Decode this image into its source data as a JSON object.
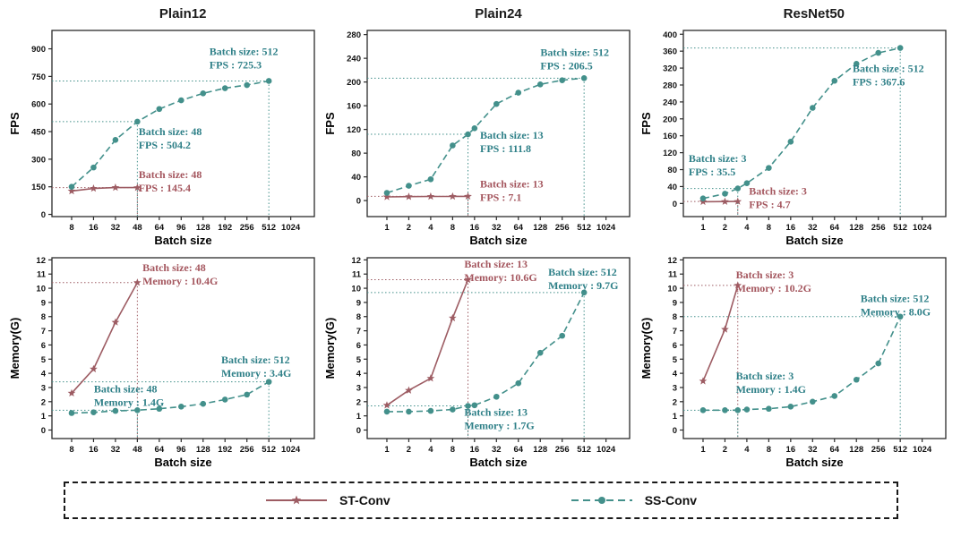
{
  "colors": {
    "st": "#9d5c63",
    "ss": "#43908b",
    "st_text": "#a4565e",
    "ss_text": "#2f8088",
    "axis": "#2b2b2b",
    "tick_text": "#111111"
  },
  "legend": {
    "items": [
      {
        "key": "st",
        "label": "ST-Conv"
      },
      {
        "key": "ss",
        "label": "SS-Conv"
      }
    ]
  },
  "chart_data": [
    {
      "id": "plain12-fps",
      "type": "line",
      "title": "Plain12",
      "xlabel": "Batch size",
      "ylabel": "FPS",
      "ylim": [
        -12,
        1000
      ],
      "yticks": [
        0,
        150,
        300,
        450,
        600,
        750,
        900
      ],
      "categories": [
        8,
        16,
        32,
        48,
        64,
        96,
        128,
        192,
        256,
        512,
        1024
      ],
      "series": [
        {
          "key": "st",
          "name": "ST-Conv",
          "points": [
            [
              8,
              127
            ],
            [
              16,
              141
            ],
            [
              32,
              146
            ],
            [
              48,
              145.4
            ]
          ]
        },
        {
          "key": "ss",
          "name": "SS-Conv",
          "points": [
            [
              8,
              150
            ],
            [
              16,
              255
            ],
            [
              32,
              405
            ],
            [
              48,
              504.2
            ],
            [
              64,
              573
            ],
            [
              96,
              620
            ],
            [
              128,
              658
            ],
            [
              192,
              686
            ],
            [
              256,
              703
            ],
            [
              512,
              725.3
            ]
          ]
        }
      ],
      "annotations": [
        {
          "series": "ss",
          "x": 512,
          "y": 725.3,
          "fx": 0.6,
          "fy": 0.08,
          "lines": [
            "Batch size: 512",
            "FPS : 725.3"
          ]
        },
        {
          "series": "ss",
          "x": 48,
          "y": 504.2,
          "fx": 0.33,
          "fy": 0.51,
          "lines": [
            "Batch size: 48",
            "FPS : 504.2"
          ]
        },
        {
          "series": "st",
          "x": 48,
          "y": 145.4,
          "fx": 0.33,
          "fy": 0.74,
          "lines": [
            "Batch size: 48",
            "FPS : 145.4"
          ]
        }
      ]
    },
    {
      "id": "plain24-fps",
      "type": "line",
      "title": "Plain24",
      "xlabel": "Batch size",
      "ylabel": "FPS",
      "ylim": [
        -27,
        287
      ],
      "yticks": [
        0,
        40,
        80,
        120,
        160,
        200,
        240,
        280
      ],
      "categories": [
        1,
        2,
        4,
        8,
        16,
        32,
        64,
        128,
        256,
        512,
        1024
      ],
      "series": [
        {
          "key": "st",
          "name": "ST-Conv",
          "points": [
            [
              1,
              6.2
            ],
            [
              2,
              6.6
            ],
            [
              4,
              6.9
            ],
            [
              8,
              7.0
            ],
            [
              13,
              7.1
            ]
          ]
        },
        {
          "key": "ss",
          "name": "SS-Conv",
          "points": [
            [
              1,
              13
            ],
            [
              2,
              25
            ],
            [
              4,
              36
            ],
            [
              8,
              93
            ],
            [
              13,
              111.8
            ],
            [
              16,
              122
            ],
            [
              32,
              163
            ],
            [
              64,
              182
            ],
            [
              128,
              196
            ],
            [
              256,
              203
            ],
            [
              512,
              206.5
            ]
          ]
        }
      ],
      "annotations": [
        {
          "series": "ss",
          "x": 512,
          "y": 206.5,
          "fx": 0.66,
          "fy": 0.085,
          "lines": [
            "Batch size: 512",
            "FPS : 206.5"
          ]
        },
        {
          "series": "ss",
          "x": 13,
          "y": 111.8,
          "fx": 0.43,
          "fy": 0.53,
          "lines": [
            "Batch size: 13",
            "FPS : 111.8"
          ]
        },
        {
          "series": "st",
          "x": 13,
          "y": 7.1,
          "fx": 0.43,
          "fy": 0.79,
          "lines": [
            "Batch size: 13",
            "FPS : 7.1"
          ]
        }
      ]
    },
    {
      "id": "resnet50-fps",
      "type": "line",
      "title": "ResNet50",
      "xlabel": "Batch size",
      "ylabel": "FPS",
      "ylim": [
        -31,
        409
      ],
      "yticks": [
        0,
        40,
        80,
        120,
        160,
        200,
        240,
        280,
        320,
        360,
        400
      ],
      "categories": [
        1,
        2,
        4,
        8,
        16,
        32,
        64,
        128,
        256,
        512,
        1024
      ],
      "series": [
        {
          "key": "st",
          "name": "ST-Conv",
          "points": [
            [
              1,
              4.1
            ],
            [
              2,
              4.5
            ],
            [
              3,
              4.7
            ]
          ]
        },
        {
          "key": "ss",
          "name": "SS-Conv",
          "points": [
            [
              1,
              12
            ],
            [
              2,
              23
            ],
            [
              3,
              35.5
            ],
            [
              4,
              48
            ],
            [
              8,
              84
            ],
            [
              16,
              146
            ],
            [
              32,
              226
            ],
            [
              64,
              290
            ],
            [
              128,
              330
            ],
            [
              256,
              356
            ],
            [
              512,
              367.6
            ]
          ]
        }
      ],
      "annotations": [
        {
          "series": "ss",
          "x": 512,
          "y": 367.6,
          "fx": 0.645,
          "fy": 0.17,
          "lines": [
            "Batch size : 512",
            "FPS : 367.6"
          ]
        },
        {
          "series": "ss",
          "x": 3,
          "y": 35.5,
          "fx": 0.02,
          "fy": 0.655,
          "lines": [
            "Batch size: 3",
            "FPS : 35.5"
          ]
        },
        {
          "series": "st",
          "x": 3,
          "y": 4.7,
          "fx": 0.25,
          "fy": 0.83,
          "lines": [
            "Batch size: 3",
            "FPS : 4.7"
          ]
        }
      ]
    },
    {
      "id": "plain12-memory",
      "type": "line",
      "title": "",
      "xlabel": "Batch size",
      "ylabel": "Memory(G)",
      "ylim": [
        -0.6,
        12.15
      ],
      "yticks": [
        0,
        1,
        2,
        3,
        4,
        5,
        6,
        7,
        8,
        9,
        10,
        11,
        12
      ],
      "categories": [
        8,
        16,
        32,
        48,
        64,
        96,
        128,
        192,
        256,
        512,
        1024
      ],
      "series": [
        {
          "key": "st",
          "name": "ST-Conv",
          "points": [
            [
              8,
              2.6
            ],
            [
              16,
              4.3
            ],
            [
              32,
              7.6
            ],
            [
              48,
              10.4
            ]
          ]
        },
        {
          "key": "ss",
          "name": "SS-Conv",
          "points": [
            [
              8,
              1.2
            ],
            [
              16,
              1.25
            ],
            [
              32,
              1.35
            ],
            [
              48,
              1.4
            ],
            [
              64,
              1.5
            ],
            [
              96,
              1.65
            ],
            [
              128,
              1.85
            ],
            [
              192,
              2.15
            ],
            [
              256,
              2.5
            ],
            [
              512,
              3.4
            ]
          ]
        }
      ],
      "annotations": [
        {
          "series": "st",
          "x": 48,
          "y": 10.4,
          "fx": 0.345,
          "fy": 0.02,
          "lines": [
            "Batch size: 48",
            "Memory : 10.4G"
          ]
        },
        {
          "series": "ss",
          "x": 512,
          "y": 3.4,
          "fx": 0.645,
          "fy": 0.53,
          "lines": [
            "Batch size: 512",
            "Memory : 3.4G"
          ]
        },
        {
          "series": "ss",
          "x": 48,
          "y": 1.4,
          "fx": 0.16,
          "fy": 0.69,
          "lines": [
            "Batch size: 48",
            "Memory : 1.4G"
          ]
        }
      ]
    },
    {
      "id": "plain24-memory",
      "type": "line",
      "title": "",
      "xlabel": "Batch size",
      "ylabel": "Memory(G)",
      "ylim": [
        -0.6,
        12.15
      ],
      "yticks": [
        0,
        1,
        2,
        3,
        4,
        5,
        6,
        7,
        8,
        9,
        10,
        11,
        12
      ],
      "categories": [
        1,
        2,
        4,
        8,
        16,
        32,
        64,
        128,
        256,
        512,
        1024
      ],
      "series": [
        {
          "key": "st",
          "name": "ST-Conv",
          "points": [
            [
              1,
              1.75
            ],
            [
              2,
              2.8
            ],
            [
              4,
              3.65
            ],
            [
              8,
              7.9
            ],
            [
              13,
              10.6
            ]
          ]
        },
        {
          "key": "ss",
          "name": "SS-Conv",
          "points": [
            [
              1,
              1.3
            ],
            [
              2,
              1.3
            ],
            [
              4,
              1.35
            ],
            [
              8,
              1.45
            ],
            [
              13,
              1.7
            ],
            [
              16,
              1.75
            ],
            [
              32,
              2.35
            ],
            [
              64,
              3.3
            ],
            [
              128,
              5.45
            ],
            [
              256,
              6.65
            ],
            [
              512,
              9.7
            ]
          ]
        }
      ],
      "annotations": [
        {
          "series": "st",
          "x": 13,
          "y": 10.6,
          "fx": 0.37,
          "fy": 0.0,
          "lines": [
            "Batch size: 13",
            "Memory: 10.6G"
          ]
        },
        {
          "series": "ss",
          "x": 512,
          "y": 9.7,
          "fx": 0.69,
          "fy": 0.045,
          "lines": [
            "Batch size: 512",
            "Memory : 9.7G"
          ]
        },
        {
          "series": "ss",
          "x": 13,
          "y": 1.7,
          "fx": 0.37,
          "fy": 0.82,
          "lines": [
            "Batch size: 13",
            "Memory : 1.7G"
          ]
        }
      ]
    },
    {
      "id": "resnet50-memory",
      "type": "line",
      "title": "",
      "xlabel": "Batch size",
      "ylabel": "Memory(G)",
      "ylim": [
        -0.6,
        12.15
      ],
      "yticks": [
        0,
        1,
        2,
        3,
        4,
        5,
        6,
        7,
        8,
        9,
        10,
        11,
        12
      ],
      "categories": [
        1,
        2,
        4,
        8,
        16,
        32,
        64,
        128,
        256,
        512,
        1024
      ],
      "series": [
        {
          "key": "st",
          "name": "ST-Conv",
          "points": [
            [
              1,
              3.45
            ],
            [
              2,
              7.1
            ],
            [
              3,
              10.2
            ]
          ]
        },
        {
          "key": "ss",
          "name": "SS-Conv",
          "points": [
            [
              1,
              1.4
            ],
            [
              2,
              1.4
            ],
            [
              3,
              1.4
            ],
            [
              4,
              1.45
            ],
            [
              8,
              1.5
            ],
            [
              16,
              1.65
            ],
            [
              32,
              2.0
            ],
            [
              64,
              2.4
            ],
            [
              128,
              3.55
            ],
            [
              256,
              4.7
            ],
            [
              512,
              8.0
            ]
          ]
        }
      ],
      "annotations": [
        {
          "series": "st",
          "x": 3,
          "y": 10.2,
          "fx": 0.2,
          "fy": 0.06,
          "lines": [
            "Batch size: 3",
            "Memory : 10.2G"
          ]
        },
        {
          "series": "ss",
          "x": 512,
          "y": 8.0,
          "fx": 0.675,
          "fy": 0.19,
          "lines": [
            "Batch size: 512",
            "Memory : 8.0G"
          ]
        },
        {
          "series": "ss",
          "x": 3,
          "y": 1.4,
          "fx": 0.2,
          "fy": 0.62,
          "lines": [
            "Batch size: 3",
            "Memory : 1.4G"
          ]
        }
      ]
    }
  ]
}
